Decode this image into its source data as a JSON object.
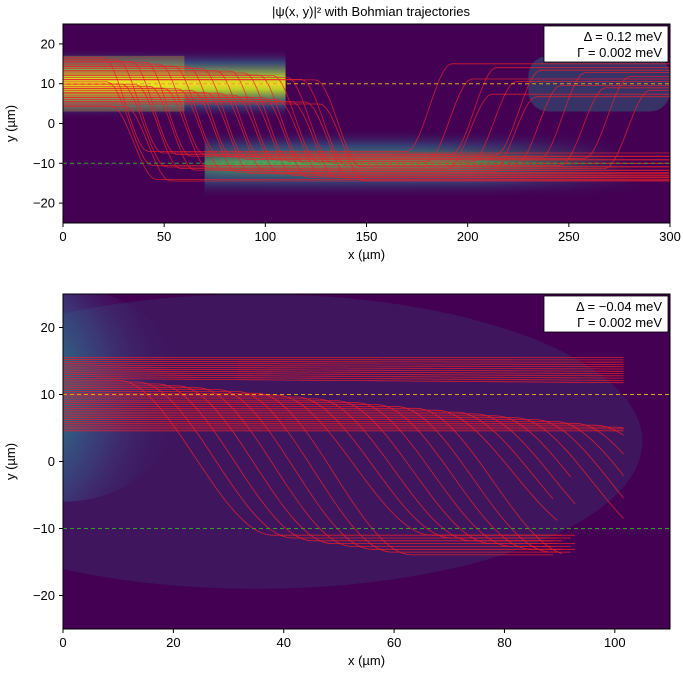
{
  "chart_data": [
    {
      "type": "heatmap",
      "title": "|ψ(x, y)|² with Bohmian trajectories",
      "xlabel": "x (µm)",
      "ylabel": "y (µm)",
      "xlim": [
        0,
        300
      ],
      "ylim": [
        -25,
        25
      ],
      "xticks": [
        "0",
        "50",
        "100",
        "150",
        "200",
        "250",
        "300"
      ],
      "yticks": [
        "−20",
        "−10",
        "0",
        "10",
        "20"
      ],
      "xtick_values": [
        0,
        50,
        100,
        150,
        200,
        250,
        300
      ],
      "ytick_values": [
        -20,
        -10,
        0,
        10,
        20
      ],
      "reference_lines_y": [
        10,
        -10
      ],
      "annotation": [
        "Δ = 0.12 meV",
        "Γ = 0.002 meV"
      ],
      "legend_position": "top-right",
      "colormap": "viridis",
      "trajectory_color": "#e8202a",
      "dashed_line_colors": [
        "#d9a21b",
        "#3a9a2a"
      ],
      "intensity_bands": [
        {
          "x_start": 0,
          "x_end": 110,
          "y_center": 10,
          "peak": 1.0
        },
        {
          "x_start": 110,
          "x_end": 270,
          "y_center": -10,
          "peak": 0.75
        },
        {
          "x_start": 230,
          "x_end": 300,
          "y_center": 10,
          "peak": 0.45
        }
      ]
    },
    {
      "type": "heatmap",
      "title": "",
      "xlabel": "x (µm)",
      "ylabel": "y (µm)",
      "xlim": [
        0,
        110
      ],
      "ylim": [
        -25,
        25
      ],
      "xticks": [
        "0",
        "20",
        "40",
        "60",
        "80",
        "100"
      ],
      "yticks": [
        "−20",
        "−10",
        "0",
        "10",
        "20"
      ],
      "xtick_values": [
        0,
        20,
        40,
        60,
        80,
        100
      ],
      "ytick_values": [
        -20,
        -10,
        0,
        10,
        20
      ],
      "reference_lines_y": [
        10,
        -10
      ],
      "annotation": [
        "Δ = −0.04 meV",
        "Γ = 0.002 meV"
      ],
      "legend_position": "top-right",
      "colormap": "viridis",
      "trajectory_color": "#e8202a",
      "dashed_line_colors": [
        "#d9a21b",
        "#3a9a2a"
      ],
      "trajectory_end_x": 102
    }
  ]
}
